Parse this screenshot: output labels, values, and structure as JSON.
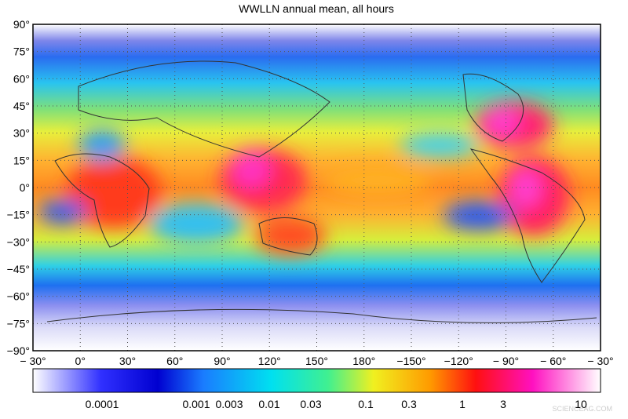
{
  "title": "WWLLN annual mean, all hours",
  "map": {
    "lat_labels": [
      "90°",
      "75°",
      "60°",
      "45°",
      "30°",
      "15°",
      "0°",
      "−15°",
      "−30°",
      "−45°",
      "−60°",
      "−75°",
      "−90°"
    ],
    "lon_labels": [
      "− 30°",
      "0°",
      "30°",
      "60°",
      "90°",
      "120°",
      "150°",
      "180°",
      "−150°",
      "−120°",
      "− 90°",
      "− 60°",
      "− 30°"
    ]
  },
  "colorbar": {
    "labels": [
      "0.0001",
      "0.001",
      "0.003",
      "0.01",
      "0.03",
      "0.1",
      "0.3",
      "1",
      "3",
      "10"
    ]
  },
  "watermark": "SCIENCEAG.COM"
}
